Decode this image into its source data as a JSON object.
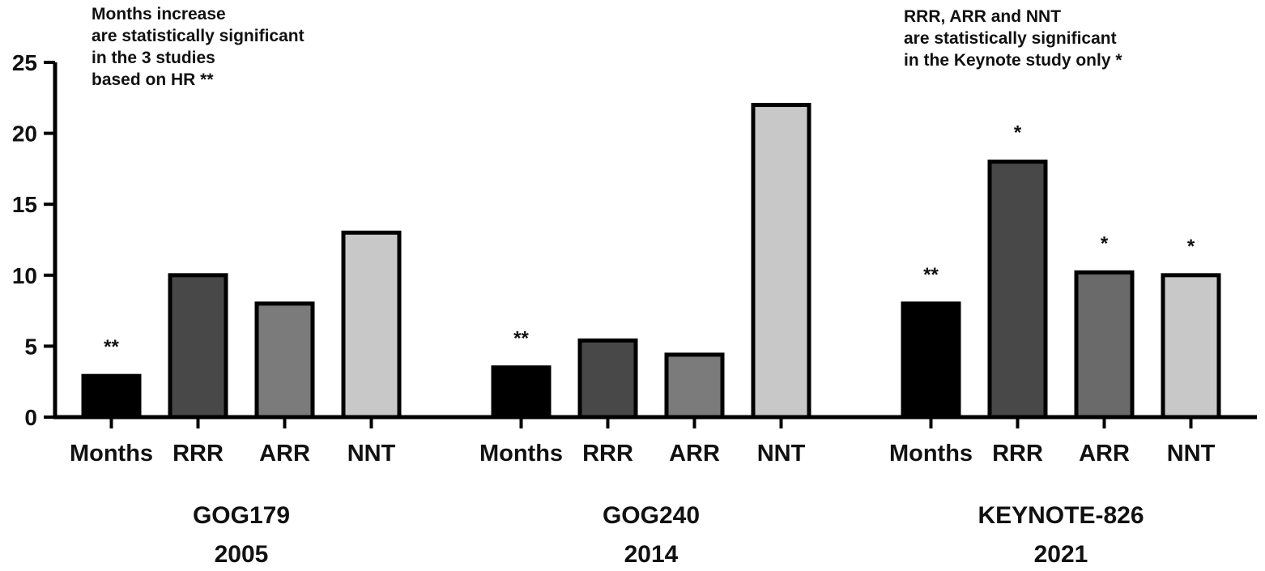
{
  "chart_data": {
    "type": "bar",
    "ylim": [
      0,
      25
    ],
    "yticks": [
      "0",
      "5",
      "10",
      "15",
      "20",
      "25"
    ],
    "grid": false,
    "categories": [
      "Months",
      "RRR",
      "ARR",
      "NNT"
    ],
    "groups": [
      {
        "label_line1": "GOG179",
        "label_line2": "2005",
        "values": [
          2.9,
          10,
          8,
          13
        ],
        "markers": [
          "**",
          "",
          "",
          ""
        ]
      },
      {
        "label_line1": "GOG240",
        "label_line2": "2014",
        "values": [
          3.5,
          5.4,
          4.4,
          22
        ],
        "markers": [
          "**",
          "",
          "",
          ""
        ]
      },
      {
        "label_line1": "KEYNOTE-826",
        "label_line2": "2021",
        "values": [
          8,
          18,
          10.2,
          10
        ],
        "markers": [
          "**",
          "*",
          "*",
          "*"
        ]
      }
    ],
    "bar_colors": [
      "#000000",
      "#484848",
      "#7b7b7b",
      "#c8c8c8"
    ],
    "bar_colors_keynote": [
      "#000000",
      "#484848",
      "#6a6a6a",
      "#c8c8c8"
    ],
    "annotations": {
      "left": [
        "Months increase",
        "are statistically significant",
        "in the 3 studies",
        "based on HR **"
      ],
      "right": [
        "RRR, ARR and NNT",
        "are statistically significant",
        "in the Keynote study only *"
      ]
    }
  }
}
